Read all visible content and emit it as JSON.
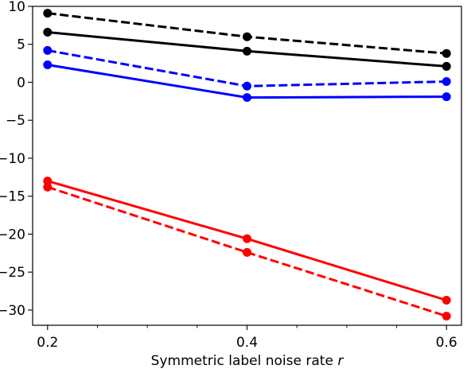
{
  "chart_data": {
    "type": "line",
    "title": "",
    "xlabel": "Symmetric label noise rate",
    "xlabel_var": "r",
    "ylabel": "",
    "x": [
      0.2,
      0.4,
      0.6
    ],
    "xlim": [
      0.185,
      0.615
    ],
    "ylim": [
      -32,
      10
    ],
    "x_major_ticks": [
      0.2,
      0.4,
      0.6
    ],
    "x_tick_labels": [
      "0.2",
      "0.4",
      "0.6"
    ],
    "x_minor_ticks": [
      0.25,
      0.3,
      0.35,
      0.45,
      0.5,
      0.55
    ],
    "y_ticks": [
      10,
      5,
      0,
      -5,
      -10,
      -15,
      -20,
      -25,
      -30
    ],
    "y_tick_labels": [
      "10",
      "5",
      "0",
      "−5",
      "−10",
      "−15",
      "−20",
      "−25",
      "−30"
    ],
    "grid": false,
    "legend": "none",
    "series": [
      {
        "color": "#000000",
        "style": "dashed",
        "values": [
          9.1,
          6.0,
          3.8
        ]
      },
      {
        "color": "#000000",
        "style": "solid",
        "values": [
          6.6,
          4.1,
          2.1
        ]
      },
      {
        "color": "#0000ff",
        "style": "dashed",
        "values": [
          4.2,
          -0.5,
          0.1
        ]
      },
      {
        "color": "#0000ff",
        "style": "solid",
        "values": [
          2.3,
          -2.0,
          -1.9
        ]
      },
      {
        "color": "#ff0000",
        "style": "solid",
        "values": [
          -13.0,
          -20.6,
          -28.7
        ]
      },
      {
        "color": "#ff0000",
        "style": "dashed",
        "values": [
          -13.8,
          -22.4,
          -30.8
        ]
      }
    ]
  }
}
